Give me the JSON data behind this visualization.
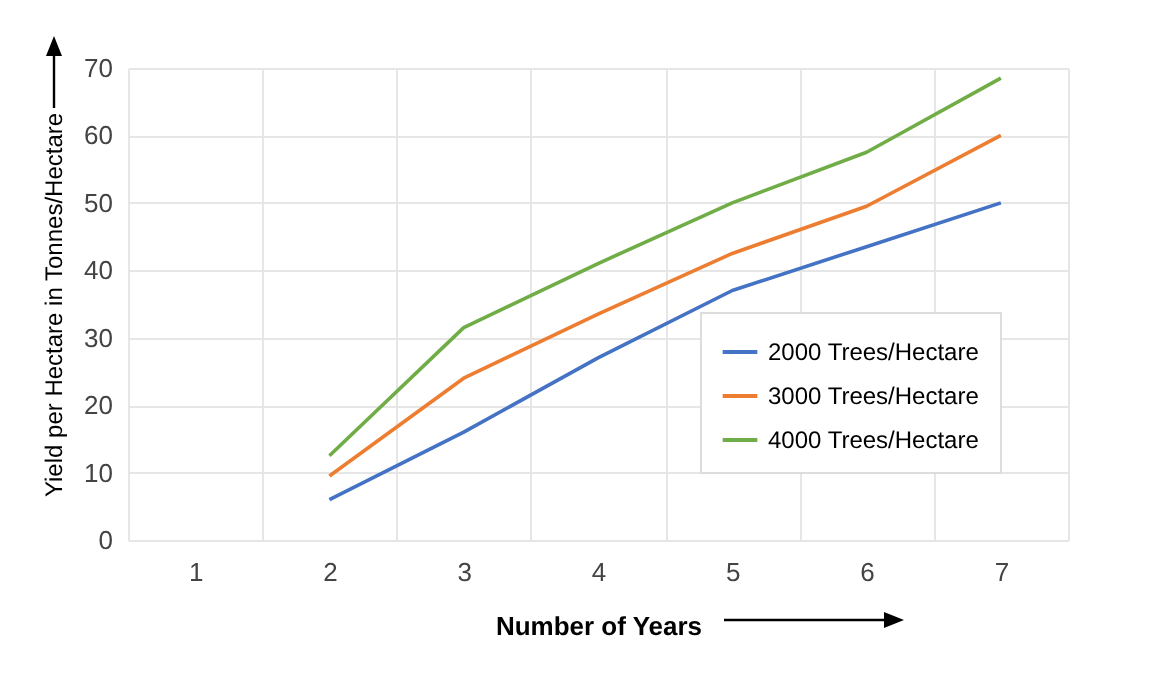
{
  "chart_data": {
    "type": "line",
    "xlabel": "Number of Years",
    "ylabel": "Yield per Hectare in Tonnes/Hectare",
    "categories": [
      "1",
      "2",
      "3",
      "4",
      "5",
      "6",
      "7"
    ],
    "series": [
      {
        "name": "2000 Trees/Hectare",
        "color": "#4472c4",
        "values": [
          null,
          6,
          16,
          27,
          37,
          43.5,
          50
        ]
      },
      {
        "name": "3000 Trees/Hectare",
        "color": "#ed7d31",
        "values": [
          null,
          9.5,
          24,
          33.5,
          42.5,
          49.5,
          60
        ]
      },
      {
        "name": "4000 Trees/Hectare",
        "color": "#70ad47",
        "values": [
          null,
          12.5,
          31.5,
          41,
          50,
          57.5,
          68.5
        ]
      }
    ],
    "ylim": [
      0,
      70
    ],
    "yticks": [
      0,
      10,
      20,
      30,
      40,
      50,
      60,
      70
    ],
    "grid": true,
    "legend": "bottom right",
    "marker": "none",
    "line_style": "solid"
  }
}
